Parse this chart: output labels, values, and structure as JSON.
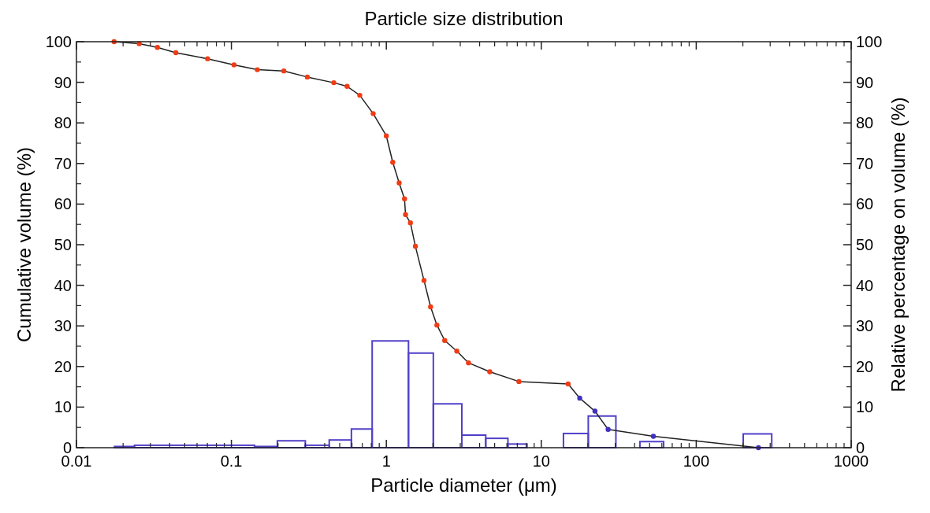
{
  "chart_data": {
    "type": "line",
    "title": "Particle size distribution",
    "xlabel": "Particle diameter (μm)",
    "ylabel": "Cumulative volume (%)",
    "y2label": "Relative percentage on volume (%)",
    "log": "x",
    "grid": false,
    "marker": "circle",
    "line_style": "solid",
    "xlim": [
      0.01,
      1000
    ],
    "xticks": [
      0.01,
      0.1,
      1,
      10,
      100,
      1000
    ],
    "ylim": [
      0,
      100
    ],
    "yticks": [
      0,
      10,
      20,
      30,
      40,
      50,
      60,
      70,
      80,
      90,
      100
    ],
    "y2lim": [
      0,
      100
    ],
    "y2ticks": [
      0,
      10,
      20,
      30,
      40,
      50,
      60,
      70,
      80,
      90,
      100
    ],
    "series": [
      {
        "type": "histogram",
        "axis": "y2",
        "color": "#5040c8",
        "bins": [
          0.0176,
          0.0237,
          0.141,
          0.198,
          0.3,
          0.428,
          0.595,
          0.81,
          1.39,
          2.01,
          3.07,
          4.38,
          6.09,
          8.09,
          13.9,
          20.1,
          30.3,
          43.3,
          61.6,
          201,
          307
        ],
        "values": [
          0.3,
          0.6,
          0.3,
          1.7,
          0.6,
          1.9,
          4.6,
          26.3,
          23.3,
          10.8,
          3.1,
          2.3,
          0.9,
          0,
          3.5,
          7.8,
          0,
          1.5,
          0,
          3.4
        ]
      },
      {
        "color": "#f03c14",
        "x": [
          0.0175,
          0.0254,
          0.0333,
          0.0438,
          0.0702,
          0.104,
          0.147,
          0.218,
          0.309,
          0.458,
          0.558,
          0.674,
          0.822,
          1.0,
          1.1,
          1.21,
          1.31,
          1.33,
          1.43,
          1.54,
          1.75,
          1.93,
          2.12,
          2.38,
          2.85,
          3.39,
          4.65,
          7.17,
          14.9,
          17.7,
          22.2,
          27.0,
          52.9,
          252
        ],
        "values": [
          100,
          99.5,
          98.6,
          97.3,
          95.8,
          94.3,
          93.1,
          92.8,
          91.3,
          89.9,
          89.0,
          86.8,
          82.3,
          76.8,
          70.3,
          65.2,
          61.3,
          57.4,
          55.4,
          49.6,
          41.2,
          34.7,
          30.2,
          26.4,
          23.8,
          20.9,
          18.7,
          16.3,
          15.7,
          12.2,
          9.0,
          4.5,
          2.8,
          0
        ],
        "colors": [
          null,
          null,
          null,
          null,
          null,
          null,
          null,
          null,
          null,
          null,
          null,
          null,
          null,
          null,
          null,
          null,
          null,
          null,
          null,
          null,
          null,
          null,
          null,
          null,
          null,
          null,
          null,
          null,
          null,
          "#4030c0",
          "#4030c0",
          "#4030c0",
          "#4030c0",
          "#4030c0"
        ]
      }
    ]
  }
}
